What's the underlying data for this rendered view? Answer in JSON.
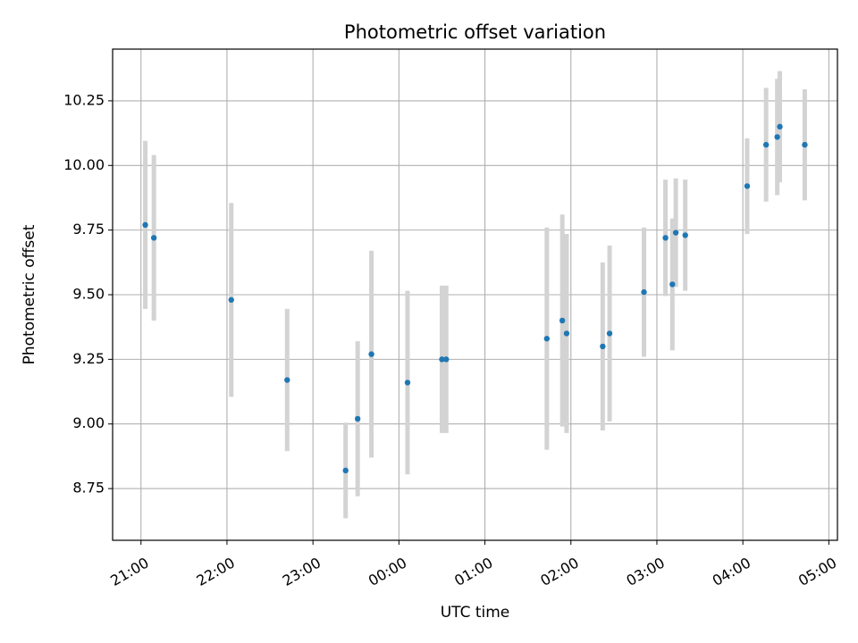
{
  "chart_data": {
    "type": "scatter",
    "title": "Photometric offset variation",
    "xlabel": "UTC time",
    "ylabel": "Photometric offset",
    "x_unit": "UTC time of night (hours past 21:00 on the first evening)",
    "xlim": [
      -0.33,
      8.1
    ],
    "ylim": [
      8.55,
      10.45
    ],
    "grid": true,
    "marker_color": "#1f77b4",
    "errorbar_color": "#d3d3d3",
    "x_ticks": [
      {
        "value": 0,
        "label": "21:00"
      },
      {
        "value": 1,
        "label": "22:00"
      },
      {
        "value": 2,
        "label": "23:00"
      },
      {
        "value": 3,
        "label": "00:00"
      },
      {
        "value": 4,
        "label": "01:00"
      },
      {
        "value": 5,
        "label": "02:00"
      },
      {
        "value": 6,
        "label": "03:00"
      },
      {
        "value": 7,
        "label": "04:00"
      },
      {
        "value": 8,
        "label": "05:00"
      }
    ],
    "y_ticks": [
      {
        "value": 8.75,
        "label": "8.75"
      },
      {
        "value": 9.0,
        "label": "9.00"
      },
      {
        "value": 9.25,
        "label": "9.25"
      },
      {
        "value": 9.5,
        "label": "9.50"
      },
      {
        "value": 9.75,
        "label": "9.75"
      },
      {
        "value": 10.0,
        "label": "10.00"
      },
      {
        "value": 10.25,
        "label": "10.25"
      }
    ],
    "points": [
      {
        "x": 0.05,
        "y": 9.77,
        "err": 0.325
      },
      {
        "x": 0.15,
        "y": 9.72,
        "err": 0.32
      },
      {
        "x": 1.05,
        "y": 9.48,
        "err": 0.375
      },
      {
        "x": 1.7,
        "y": 9.17,
        "err": 0.275
      },
      {
        "x": 2.38,
        "y": 8.82,
        "err": 0.185
      },
      {
        "x": 2.52,
        "y": 9.02,
        "err": 0.3
      },
      {
        "x": 2.68,
        "y": 9.27,
        "err": 0.4
      },
      {
        "x": 3.1,
        "y": 9.16,
        "err": 0.355
      },
      {
        "x": 3.5,
        "y": 9.25,
        "err": 0.285
      },
      {
        "x": 3.55,
        "y": 9.25,
        "err": 0.285
      },
      {
        "x": 4.72,
        "y": 9.33,
        "err": 0.43
      },
      {
        "x": 4.9,
        "y": 9.4,
        "err": 0.41
      },
      {
        "x": 4.95,
        "y": 9.35,
        "err": 0.385
      },
      {
        "x": 5.37,
        "y": 9.3,
        "err": 0.325
      },
      {
        "x": 5.45,
        "y": 9.35,
        "err": 0.34
      },
      {
        "x": 5.85,
        "y": 9.51,
        "err": 0.25
      },
      {
        "x": 6.1,
        "y": 9.72,
        "err": 0.225
      },
      {
        "x": 6.18,
        "y": 9.54,
        "err": 0.255
      },
      {
        "x": 6.22,
        "y": 9.74,
        "err": 0.21
      },
      {
        "x": 6.33,
        "y": 9.73,
        "err": 0.215
      },
      {
        "x": 7.05,
        "y": 9.92,
        "err": 0.185
      },
      {
        "x": 7.27,
        "y": 10.08,
        "err": 0.22
      },
      {
        "x": 7.4,
        "y": 10.11,
        "err": 0.225
      },
      {
        "x": 7.43,
        "y": 10.15,
        "err": 0.215
      },
      {
        "x": 7.72,
        "y": 10.08,
        "err": 0.215
      }
    ]
  }
}
